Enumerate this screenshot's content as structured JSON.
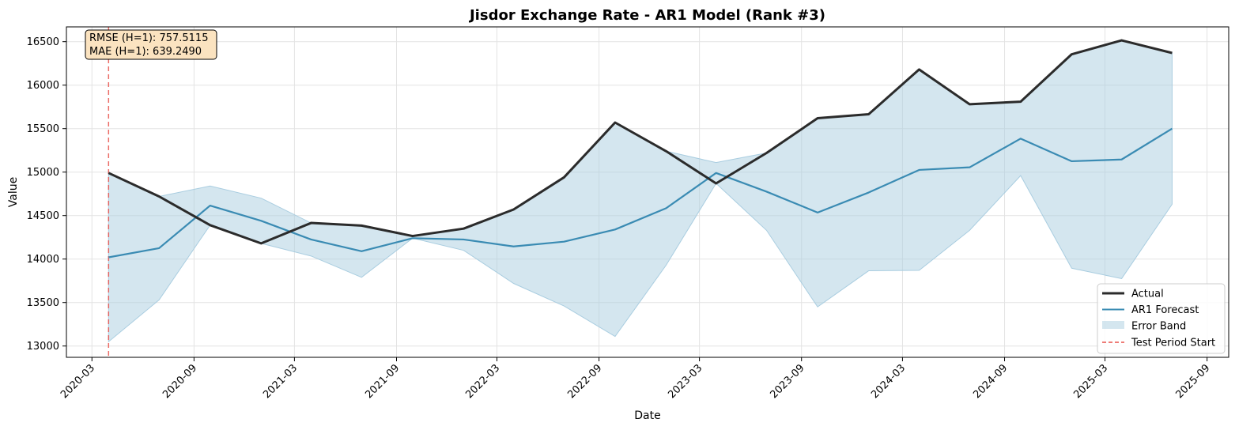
{
  "chart_data": {
    "type": "line",
    "title": "Jisdor Exchange Rate - AR1 Model (Rank #3)",
    "xlabel": "Date",
    "ylabel": "Value",
    "ylim": [
      12870,
      16670
    ],
    "xlim": [
      "2020-01-15",
      "2025-10-10"
    ],
    "x_ticks": [
      "2020-03",
      "2020-09",
      "2021-03",
      "2021-09",
      "2022-03",
      "2022-09",
      "2023-03",
      "2023-09",
      "2024-03",
      "2024-09",
      "2025-03",
      "2025-09"
    ],
    "y_ticks": [
      13000,
      13500,
      14000,
      14500,
      15000,
      15500,
      16000,
      16500
    ],
    "grid": true,
    "legend_position": "lower-right",
    "x": [
      "2020-03-31",
      "2020-06-30",
      "2020-09-30",
      "2020-12-31",
      "2021-03-31",
      "2021-06-30",
      "2021-09-30",
      "2021-12-31",
      "2022-03-31",
      "2022-06-30",
      "2022-09-30",
      "2022-12-31",
      "2023-03-31",
      "2023-06-30",
      "2023-09-30",
      "2023-12-31",
      "2024-03-31",
      "2024-06-30",
      "2024-09-30",
      "2024-12-31",
      "2025-03-31",
      "2025-06-30"
    ],
    "series": [
      {
        "name": "Actual",
        "color": "#2b2b2b",
        "values": [
          14990,
          14720,
          14390,
          14180,
          14415,
          14385,
          14265,
          14350,
          14570,
          14940,
          15570,
          15240,
          14870,
          15220,
          15620,
          15665,
          16180,
          15780,
          15810,
          16355,
          16515,
          16370
        ]
      },
      {
        "name": "AR1 Forecast",
        "color": "#3a8bb3",
        "values": [
          14020,
          14125,
          14615,
          14440,
          14225,
          14090,
          14240,
          14225,
          14145,
          14200,
          14340,
          14585,
          14990,
          14775,
          14535,
          14765,
          15025,
          15055,
          15385,
          15125,
          15145,
          15500
        ]
      },
      {
        "name": "Error Band",
        "color": "#a9cde0",
        "lower": [
          13050,
          13530,
          14390,
          14180,
          14035,
          13790,
          14240,
          14100,
          13720,
          13460,
          13110,
          13930,
          14870,
          14330,
          13450,
          13865,
          13870,
          14330,
          14960,
          13895,
          13775,
          14630
        ],
        "upper": [
          14990,
          14720,
          14840,
          14700,
          14415,
          14385,
          14265,
          14350,
          14570,
          14940,
          15570,
          15240,
          15110,
          15220,
          15620,
          15665,
          16180,
          15780,
          15810,
          16355,
          16515,
          16370
        ]
      }
    ],
    "test_period_start": {
      "name": "Test Period Start",
      "x": "2020-03-31",
      "color": "#e8504a"
    },
    "annotation": {
      "lines": [
        "RMSE (H=1): 757.5115",
        "MAE (H=1): 639.2490"
      ],
      "background": "#fbe3c0"
    }
  }
}
